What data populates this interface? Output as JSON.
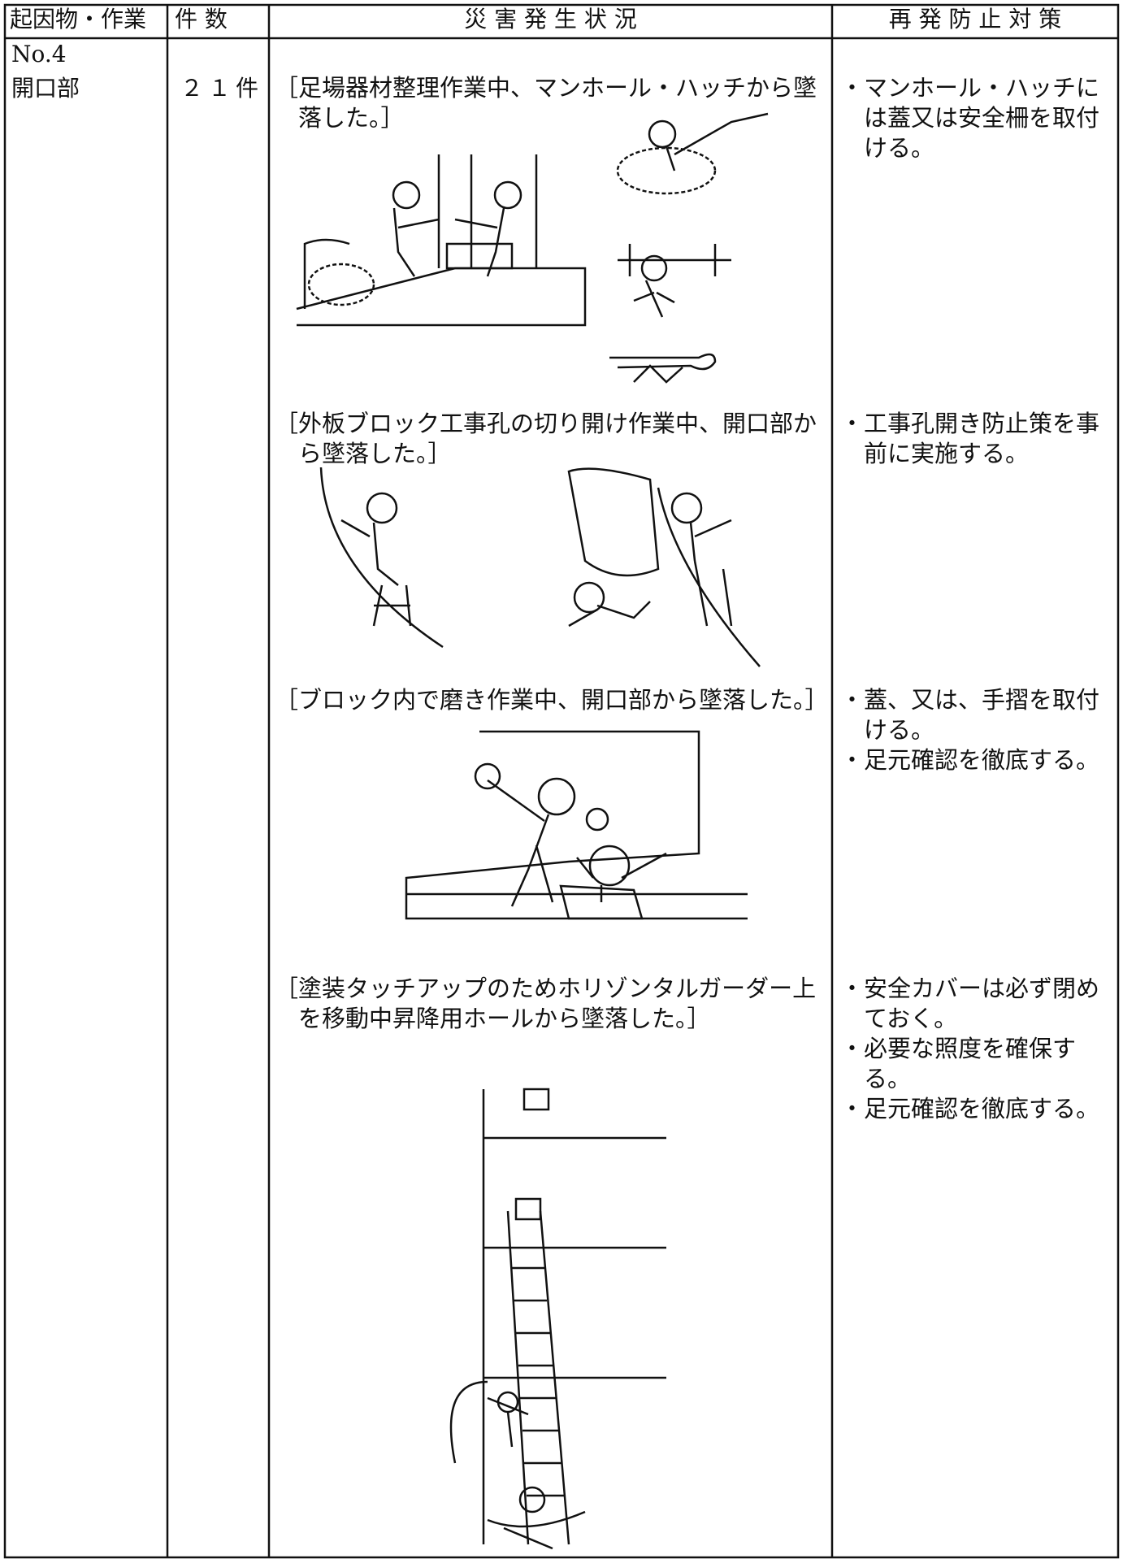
{
  "table": {
    "header": [
      "起因物・作業",
      "件 数",
      "災 害 発 生 状 況",
      "再 発 防 止 対 策"
    ],
    "row": {
      "cause": [
        "No.4",
        "開口部"
      ],
      "count": "２１件",
      "cases": [
        {
          "description": "［足場器材整理作業中、マンホール・ハッチから墜落した。］",
          "measures": [
            "・マンホール・ハッチには蓋又は安全柵を取付ける。"
          ]
        },
        {
          "description": "［外板ブロック工事孔の切り開け作業中、開口部から墜落した。］",
          "measures": [
            "・工事孔開き防止策を事前に実施する。"
          ]
        },
        {
          "description": "［ブロック内で磨き作業中、開口部から墜落した。］",
          "measures": [
            "・蓋、又は、手摺を取付ける。",
            "・足元確認を徹底する。"
          ]
        },
        {
          "description": "［塗装タッチアップのためホリゾンタルガーダー上を移動中昇降用ホールから墜落した。］",
          "measures": [
            "・安全カバーは必ず閉めておく。",
            "・必要な照度を確保する。",
            "・足元確認を徹底する。"
          ]
        }
      ]
    }
  }
}
